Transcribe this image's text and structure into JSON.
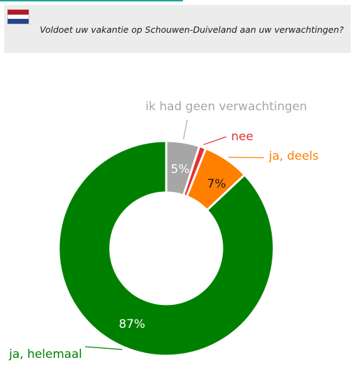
{
  "header": {
    "question": "Voldoet uw vakantie op Schouwen-Duiveland aan uw verwachtingen?",
    "flag_icon": "netherlands-flag-icon",
    "flag_colors": [
      "#ae1c28",
      "#ffffff",
      "#21468b"
    ]
  },
  "chart_data": {
    "type": "pie",
    "variant": "donut",
    "title": "",
    "categories": [
      "ik had geen verwachtingen",
      "nee",
      "ja, deels",
      "ja, helemaal"
    ],
    "values": [
      5,
      1,
      7,
      87
    ],
    "value_labels": [
      "5%",
      "",
      "7%",
      "87%"
    ],
    "colors": [
      "#a6a6a6",
      "#e33232",
      "#ff7f00",
      "#008000"
    ],
    "start_angle_deg": 0,
    "direction": "clockwise",
    "legend": "none (labels drawn next to slices)"
  }
}
